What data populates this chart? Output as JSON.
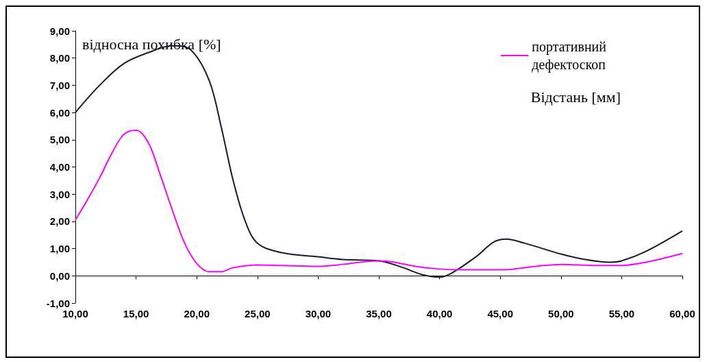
{
  "chart_data": {
    "type": "line",
    "ylabel": "відносна похибка [%]",
    "xlabel": "Відстань [мм]",
    "xlim": [
      10,
      60
    ],
    "xticks": [
      {
        "value": 10,
        "label": "10,00"
      },
      {
        "value": 15,
        "label": "15,00"
      },
      {
        "value": 20,
        "label": "20,00"
      },
      {
        "value": 25,
        "label": "25,00"
      },
      {
        "value": 30,
        "label": "30,00"
      },
      {
        "value": 35,
        "label": "35,00"
      },
      {
        "value": 40,
        "label": "40,00"
      },
      {
        "value": 45,
        "label": "45,00"
      },
      {
        "value": 50,
        "label": "50,00"
      },
      {
        "value": 55,
        "label": "55,00"
      },
      {
        "value": 60,
        "label": "60,00"
      }
    ],
    "ylim": [
      -1,
      9
    ],
    "yticks": [
      {
        "value": -1,
        "label": "-1,00"
      },
      {
        "value": 0,
        "label": "0,00"
      },
      {
        "value": 1,
        "label": "1,00"
      },
      {
        "value": 2,
        "label": "2,00"
      },
      {
        "value": 3,
        "label": "3,00"
      },
      {
        "value": 4,
        "label": "4,00"
      },
      {
        "value": 5,
        "label": "5,00"
      },
      {
        "value": 6,
        "label": "6,00"
      },
      {
        "value": 7,
        "label": "7,00"
      },
      {
        "value": 8,
        "label": "8,00"
      },
      {
        "value": 9,
        "label": "9,00"
      }
    ],
    "legend": "top right",
    "marker": "none",
    "line_style": "solid",
    "series": [
      {
        "color": "#1a1a2e",
        "x": [
          10,
          12,
          14,
          16,
          18,
          19.5,
          21,
          22,
          23,
          24,
          25,
          27,
          30,
          32,
          35,
          37,
          38.5,
          40,
          41,
          43,
          44.5,
          45.5,
          47,
          50,
          52,
          54,
          55,
          57,
          60
        ],
        "values": [
          6.0,
          7.0,
          7.8,
          8.2,
          8.45,
          8.3,
          7.2,
          5.5,
          3.5,
          2.0,
          1.2,
          0.85,
          0.7,
          0.6,
          0.55,
          0.3,
          0.05,
          -0.05,
          0.1,
          0.7,
          1.25,
          1.35,
          1.2,
          0.8,
          0.6,
          0.5,
          0.55,
          0.9,
          1.65
        ]
      },
      {
        "name": "портативний дефектоскоп",
        "color": "#ff00ff",
        "x": [
          10,
          11,
          12,
          13,
          14,
          15,
          16,
          17,
          18,
          19,
          20,
          21,
          22,
          23,
          25,
          27,
          30,
          32,
          35,
          36,
          38,
          40,
          42,
          45,
          48,
          50,
          53,
          55,
          57,
          60
        ],
        "values": [
          2.05,
          2.8,
          3.6,
          4.5,
          5.2,
          5.35,
          4.9,
          3.7,
          2.4,
          1.2,
          0.45,
          0.15,
          0.15,
          0.3,
          0.4,
          0.38,
          0.35,
          0.42,
          0.55,
          0.52,
          0.35,
          0.25,
          0.22,
          0.22,
          0.35,
          0.42,
          0.38,
          0.38,
          0.5,
          0.82
        ]
      }
    ]
  }
}
